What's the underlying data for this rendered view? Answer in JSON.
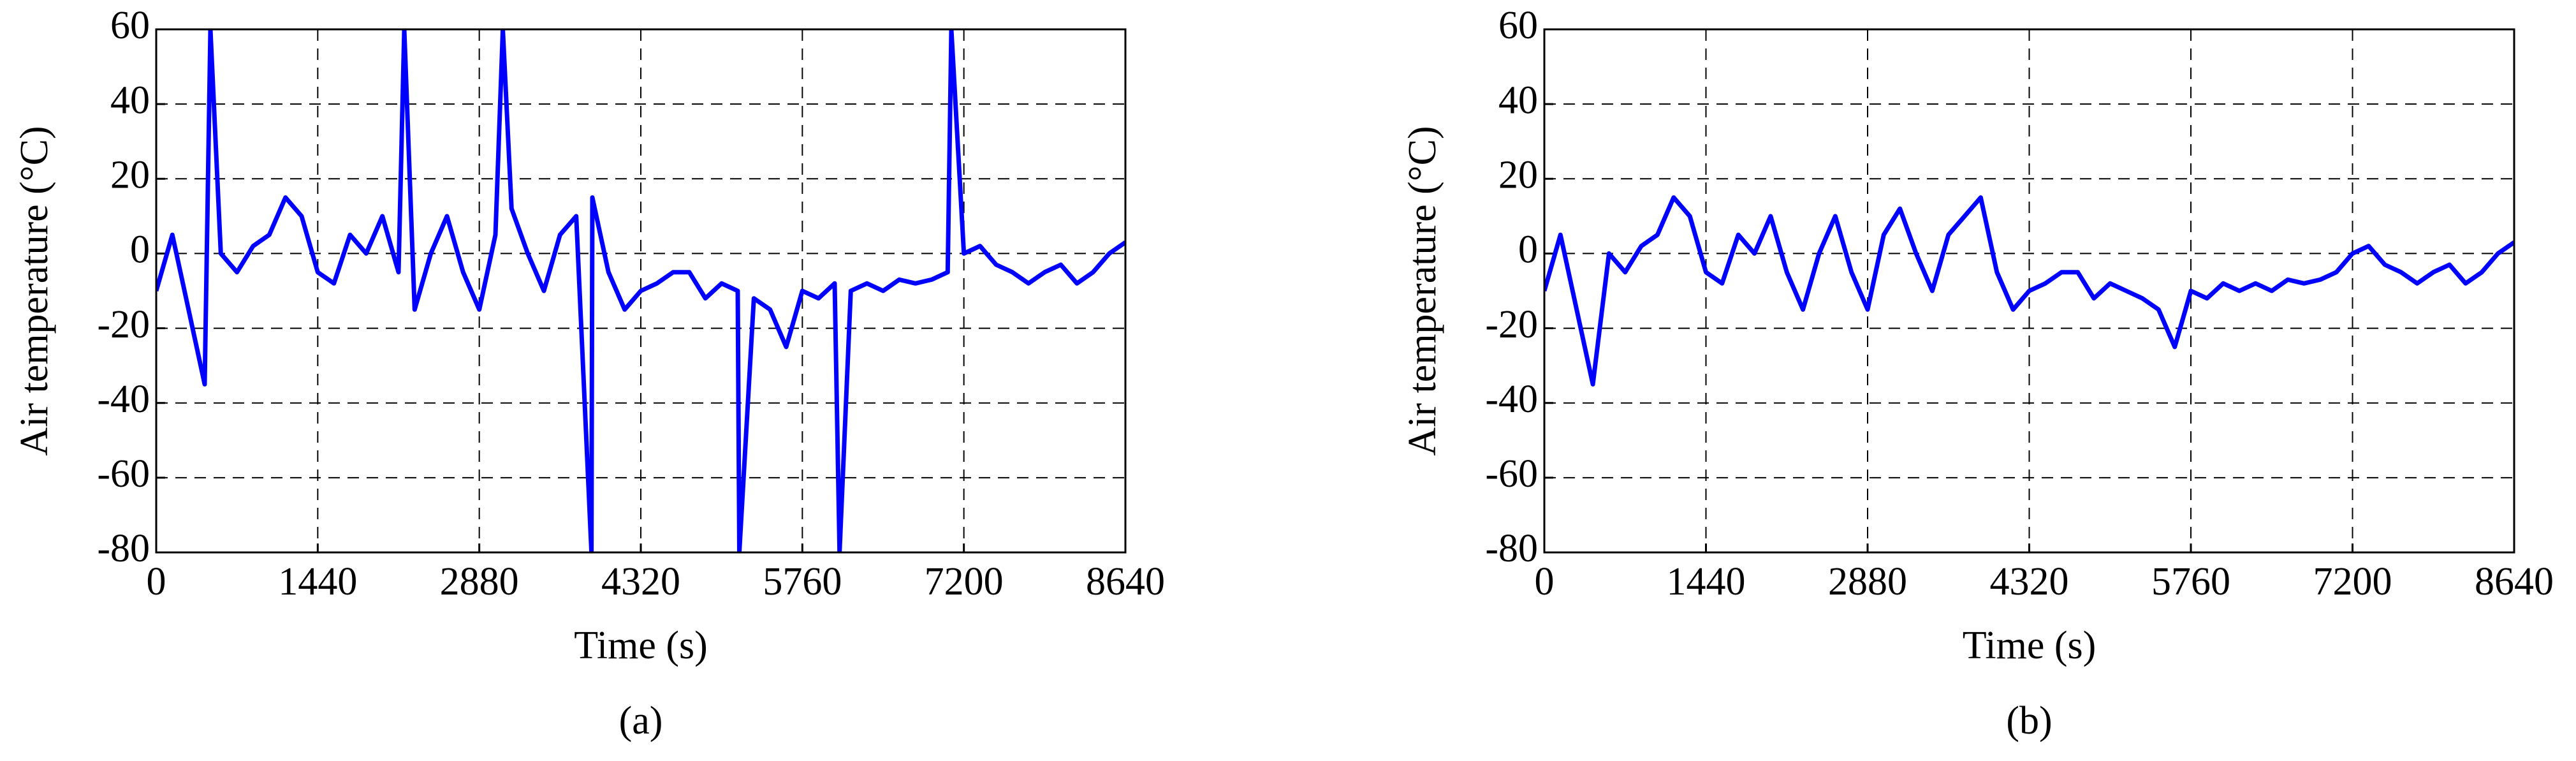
{
  "chart_data": [
    {
      "type": "line",
      "caption": "(a)",
      "x_label": "Time (s)",
      "y_label": "Air temperature (°C)",
      "xlim": [
        0,
        8640
      ],
      "ylim": [
        -80,
        60
      ],
      "xticks": [
        0,
        1440,
        2880,
        4320,
        5760,
        7200,
        8640
      ],
      "yticks": [
        -80,
        -60,
        -40,
        -20,
        0,
        20,
        40,
        60
      ],
      "grid": true,
      "series": [
        {
          "color": "#0000ff",
          "x": [
            0,
            144,
            288,
            432,
            483,
            576,
            720,
            864,
            1008,
            1152,
            1296,
            1440,
            1584,
            1728,
            1872,
            2016,
            2160,
            2211,
            2304,
            2448,
            2592,
            2736,
            2880,
            3024,
            3090,
            3168,
            3312,
            3456,
            3600,
            3744,
            3880,
            3888,
            4032,
            4176,
            4320,
            4464,
            4608,
            4752,
            4896,
            5040,
            5184,
            5198,
            5328,
            5472,
            5616,
            5760,
            5904,
            6048,
            6092,
            6192,
            6336,
            6480,
            6624,
            6768,
            6912,
            7056,
            7088,
            7200,
            7344,
            7488,
            7632,
            7776,
            7920,
            8064,
            8208,
            8352,
            8496,
            8640
          ],
          "values": [
            -10,
            5,
            -15,
            -35,
            60,
            0,
            -5,
            2,
            5,
            15,
            10,
            -5,
            -8,
            5,
            0,
            10,
            -5,
            60,
            -15,
            0,
            10,
            -5,
            -15,
            5,
            60,
            12,
            0,
            -10,
            5,
            10,
            -80,
            15,
            -5,
            -15,
            -10,
            -8,
            -5,
            -5,
            -12,
            -8,
            -10,
            -80,
            -12,
            -15,
            -25,
            -10,
            -12,
            -8,
            -80,
            -10,
            -8,
            -10,
            -7,
            -8,
            -7,
            -5,
            60,
            0,
            2,
            -3,
            -5,
            -8,
            -5,
            -3,
            -8,
            -5,
            0,
            3
          ]
        }
      ]
    },
    {
      "type": "line",
      "caption": "(b)",
      "x_label": "Time (s)",
      "y_label": "Air temperature (°C)",
      "xlim": [
        0,
        8640
      ],
      "ylim": [
        -80,
        60
      ],
      "xticks": [
        0,
        1440,
        2880,
        4320,
        5760,
        7200,
        8640
      ],
      "yticks": [
        -80,
        -60,
        -40,
        -20,
        0,
        20,
        40,
        60
      ],
      "grid": true,
      "series": [
        {
          "color": "#0000ff",
          "x": [
            0,
            144,
            288,
            432,
            576,
            720,
            864,
            1008,
            1152,
            1296,
            1440,
            1584,
            1728,
            1872,
            2016,
            2160,
            2304,
            2448,
            2592,
            2736,
            2880,
            3024,
            3168,
            3312,
            3456,
            3600,
            3744,
            3888,
            4032,
            4176,
            4320,
            4464,
            4608,
            4752,
            4896,
            5040,
            5184,
            5328,
            5472,
            5616,
            5760,
            5904,
            6048,
            6192,
            6336,
            6480,
            6624,
            6768,
            6912,
            7056,
            7200,
            7344,
            7488,
            7632,
            7776,
            7920,
            8064,
            8208,
            8352,
            8496,
            8640
          ],
          "values": [
            -10,
            5,
            -15,
            -35,
            0,
            -5,
            2,
            5,
            15,
            10,
            -5,
            -8,
            5,
            0,
            10,
            -5,
            -15,
            0,
            10,
            -5,
            -15,
            5,
            12,
            0,
            -10,
            5,
            10,
            15,
            -5,
            -15,
            -10,
            -8,
            -5,
            -5,
            -12,
            -8,
            -10,
            -12,
            -15,
            -25,
            -10,
            -12,
            -8,
            -10,
            -8,
            -10,
            -7,
            -8,
            -7,
            -5,
            0,
            2,
            -3,
            -5,
            -8,
            -5,
            -3,
            -8,
            -5,
            0,
            3
          ]
        }
      ]
    }
  ]
}
